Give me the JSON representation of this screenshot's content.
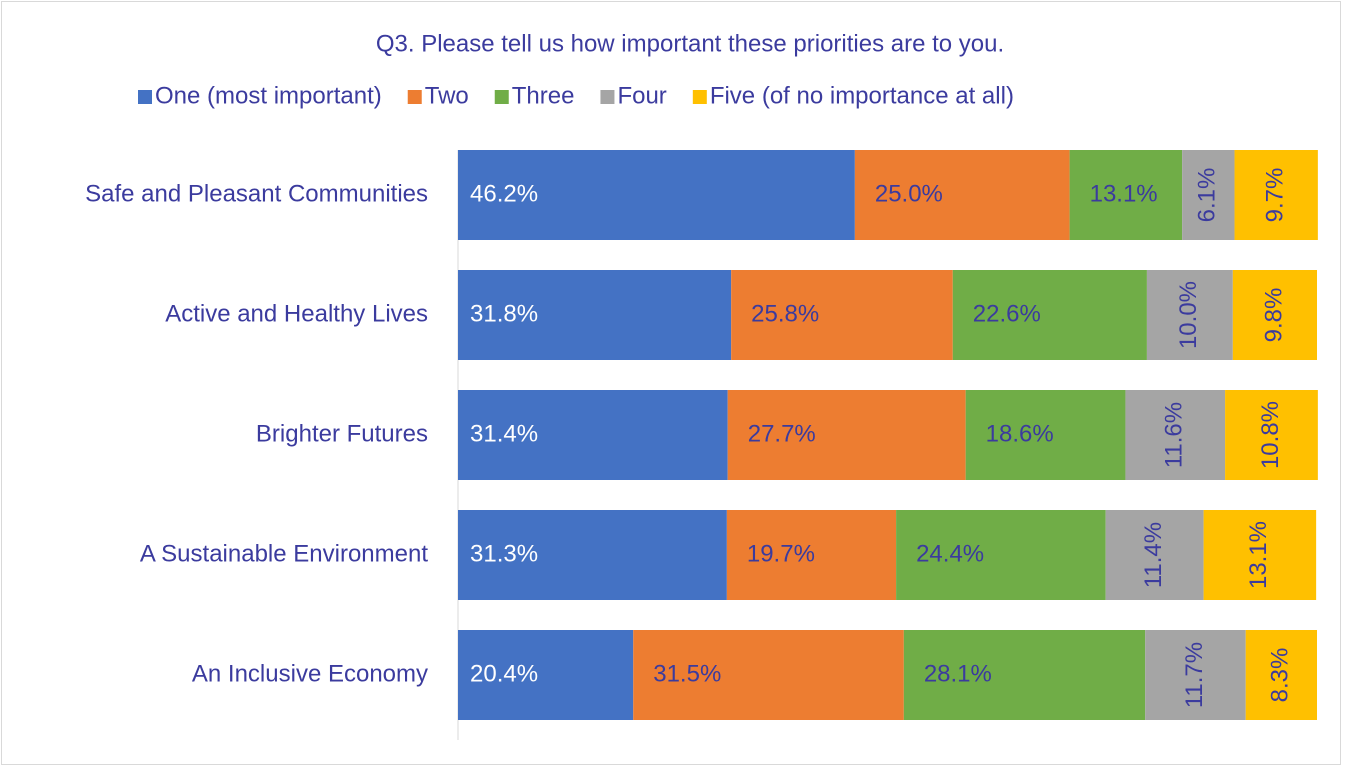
{
  "chart_data": {
    "type": "stacked_bar_horizontal",
    "title": "Q3. Please tell us how important these priorities are to you.",
    "categories": [
      "Safe and Pleasant Communities",
      "Active and Healthy Lives",
      "Brighter Futures",
      "A Sustainable Environment",
      "An Inclusive Economy"
    ],
    "series": [
      {
        "name": "One (most important)",
        "color": "#4472c4",
        "values": [
          46.2,
          31.8,
          31.4,
          31.3,
          20.4
        ],
        "value_labels": [
          "46.2%",
          "31.8%",
          "31.4%",
          "31.3%",
          "20.4%"
        ]
      },
      {
        "name": "Two",
        "color": "#ed7d31",
        "values": [
          25.0,
          25.8,
          27.7,
          19.7,
          31.5
        ],
        "value_labels": [
          "25.0%",
          "25.8%",
          "27.7%",
          "19.7%",
          "31.5%"
        ]
      },
      {
        "name": "Three",
        "color": "#70ad47",
        "values": [
          13.1,
          22.6,
          18.6,
          24.4,
          28.1
        ],
        "value_labels": [
          "13.1%",
          "22.6%",
          "18.6%",
          "24.4%",
          "28.1%"
        ]
      },
      {
        "name": "Four",
        "color": "#a5a5a5",
        "values": [
          6.1,
          10.0,
          11.6,
          11.4,
          11.7
        ],
        "value_labels": [
          "6.1%",
          "10.0%",
          "11.6%",
          "11.4%",
          "11.7%"
        ]
      },
      {
        "name": "Five (of no importance at all)",
        "color": "#ffc000",
        "values": [
          9.7,
          9.8,
          10.8,
          13.1,
          8.3
        ],
        "value_labels": [
          "9.7%",
          "9.8%",
          "10.8%",
          "13.1%",
          "8.3%"
        ]
      }
    ],
    "xlim": [
      0,
      100
    ],
    "legend": "top"
  }
}
